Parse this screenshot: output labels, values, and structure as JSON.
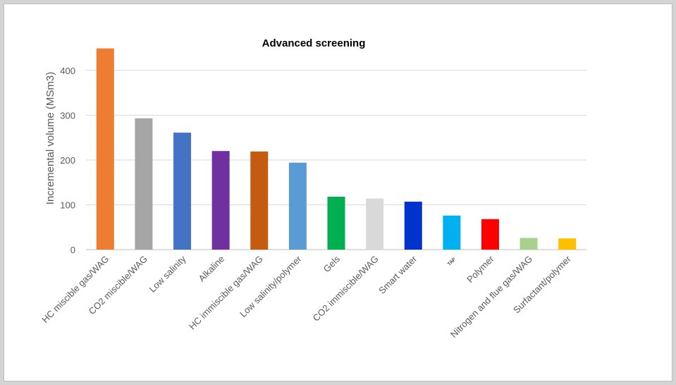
{
  "chart_data": {
    "type": "bar",
    "title": "Advanced screening",
    "xlabel": "",
    "ylabel": "Incremental volume (MSm3)",
    "ylim": [
      0,
      450
    ],
    "yticks": [
      0,
      100,
      200,
      300,
      400
    ],
    "grid": true,
    "categories": [
      "HC miscible gas/WAG",
      "CO2 miscible/WAG",
      "Low salinity",
      "Alkaline",
      "HC immiscible gas/WAG",
      "Low salinity/polymer",
      "Gels",
      "CO2 immiscible/WAG",
      "Smart water",
      "TAP",
      "Polymer",
      "Nitrogen and flue gas/WAG",
      "Surfactant/polymer"
    ],
    "values": [
      449,
      293,
      261,
      220,
      219,
      194,
      118,
      114,
      107,
      76,
      68,
      26,
      25
    ],
    "colors": [
      "#ed7d31",
      "#a5a5a5",
      "#4472c4",
      "#7030a0",
      "#c55a11",
      "#5b9bd5",
      "#00b050",
      "#d9d9d9",
      "#0033cc",
      "#00b0f0",
      "#ff0000",
      "#a9d18e",
      "#ffc000"
    ]
  }
}
